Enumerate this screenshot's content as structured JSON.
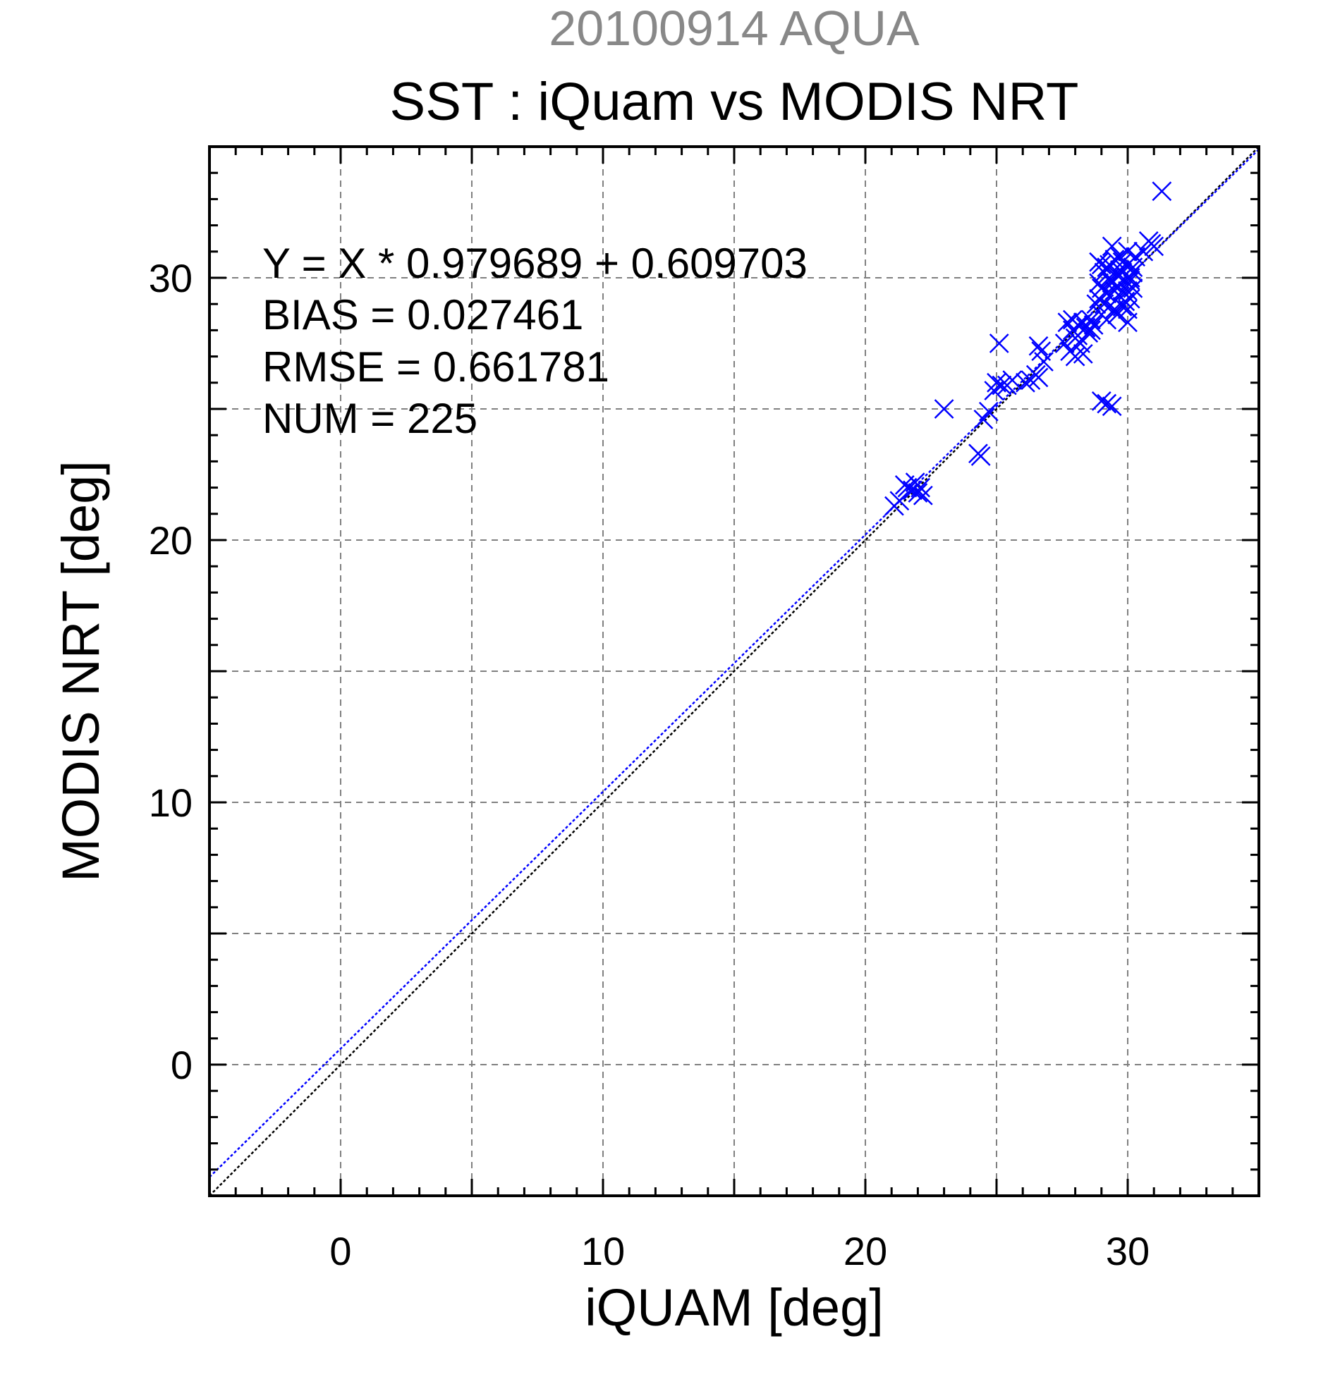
{
  "chart_data": {
    "type": "scatter",
    "supertitle": "20100914 AQUA",
    "title": "SST : iQuam vs MODIS NRT",
    "xlabel": "iQUAM [deg]",
    "ylabel": "MODIS NRT [deg]",
    "xlim": [
      -5,
      35
    ],
    "ylim": [
      -5,
      35
    ],
    "xticks": [
      0,
      10,
      20,
      30
    ],
    "yticks": [
      0,
      10,
      20,
      30
    ],
    "xtick_labels": [
      "0",
      "10",
      "20",
      "30"
    ],
    "ytick_labels": [
      "0",
      "10",
      "20",
      "30"
    ],
    "grid": true,
    "grid_step": 5,
    "minor_tick_step": 1,
    "stats": {
      "equation": "Y = X * 0.979689 + 0.609703",
      "bias": "BIAS = 0.027461",
      "rmse": "RMSE = 0.661781",
      "num": "NUM = 225"
    },
    "lines": [
      {
        "role": "one-to-one",
        "slope": 1.0,
        "intercept": 0.0,
        "color": "#000000",
        "style": "dotted"
      },
      {
        "role": "regression",
        "slope": 0.979689,
        "intercept": 0.609703,
        "color": "#0000ff",
        "style": "dotted"
      }
    ],
    "marker": "x",
    "marker_color": "#0000ff",
    "points": [
      [
        31.3,
        33.3
      ],
      [
        29.4,
        31.2
      ],
      [
        30.0,
        31.0
      ],
      [
        30.8,
        31.4
      ],
      [
        30.9,
        31.3
      ],
      [
        31.0,
        31.2
      ],
      [
        30.6,
        31.0
      ],
      [
        28.9,
        30.6
      ],
      [
        29.0,
        30.5
      ],
      [
        29.2,
        30.4
      ],
      [
        29.5,
        30.7
      ],
      [
        29.7,
        30.8
      ],
      [
        29.8,
        30.6
      ],
      [
        30.0,
        30.5
      ],
      [
        30.2,
        30.4
      ],
      [
        30.3,
        30.8
      ],
      [
        29.1,
        30.2
      ],
      [
        29.3,
        30.0
      ],
      [
        29.4,
        29.8
      ],
      [
        29.6,
        30.1
      ],
      [
        29.8,
        30.2
      ],
      [
        29.9,
        29.9
      ],
      [
        30.1,
        30.0
      ],
      [
        30.2,
        29.6
      ],
      [
        29.0,
        29.6
      ],
      [
        29.2,
        29.4
      ],
      [
        29.5,
        29.5
      ],
      [
        29.7,
        29.3
      ],
      [
        29.9,
        29.1
      ],
      [
        30.0,
        29.5
      ],
      [
        30.1,
        29.2
      ],
      [
        29.1,
        29.0
      ],
      [
        29.3,
        28.9
      ],
      [
        29.5,
        28.8
      ],
      [
        29.8,
        28.9
      ],
      [
        30.0,
        28.8
      ],
      [
        28.9,
        29.8
      ],
      [
        28.9,
        29.2
      ],
      [
        29.0,
        28.6
      ],
      [
        29.2,
        28.4
      ],
      [
        29.6,
        28.6
      ],
      [
        30.0,
        28.3
      ],
      [
        29.4,
        29.9
      ],
      [
        29.6,
        29.7
      ],
      [
        29.7,
        30.3
      ],
      [
        29.8,
        29.5
      ],
      [
        30.1,
        29.9
      ],
      [
        30.2,
        30.2
      ],
      [
        29.3,
        30.5
      ],
      [
        28.8,
        29.0
      ],
      [
        28.6,
        28.4
      ],
      [
        28.4,
        28.1
      ],
      [
        28.3,
        28.3
      ],
      [
        28.1,
        28.2
      ],
      [
        27.9,
        28.0
      ],
      [
        27.7,
        28.3
      ],
      [
        28.0,
        27.7
      ],
      [
        28.2,
        27.5
      ],
      [
        28.5,
        27.9
      ],
      [
        28.7,
        28.2
      ],
      [
        27.8,
        27.2
      ],
      [
        28.0,
        27.0
      ],
      [
        28.3,
        27.1
      ],
      [
        28.1,
        27.8
      ],
      [
        27.6,
        27.5
      ],
      [
        27.9,
        28.4
      ],
      [
        28.6,
        28.0
      ],
      [
        26.7,
        27.2
      ],
      [
        26.6,
        27.4
      ],
      [
        26.8,
        26.8
      ],
      [
        26.5,
        26.3
      ],
      [
        26.3,
        26.1
      ],
      [
        26.1,
        26.0
      ],
      [
        26.6,
        26.2
      ],
      [
        25.1,
        27.5
      ],
      [
        25.0,
        26.0
      ],
      [
        25.2,
        25.9
      ],
      [
        24.9,
        25.7
      ],
      [
        25.4,
        25.9
      ],
      [
        25.6,
        26.1
      ],
      [
        24.7,
        24.9
      ],
      [
        24.5,
        24.6
      ],
      [
        23.0,
        25.0
      ],
      [
        24.3,
        23.3
      ],
      [
        24.4,
        23.2
      ],
      [
        29.2,
        25.2
      ],
      [
        29.4,
        25.1
      ],
      [
        29.0,
        25.3
      ],
      [
        21.6,
        22.0
      ],
      [
        21.8,
        21.9
      ],
      [
        22.0,
        21.8
      ],
      [
        22.1,
        22.0
      ],
      [
        21.9,
        22.2
      ],
      [
        21.5,
        22.1
      ],
      [
        21.3,
        21.5
      ],
      [
        21.1,
        21.3
      ],
      [
        22.2,
        21.7
      ]
    ]
  }
}
